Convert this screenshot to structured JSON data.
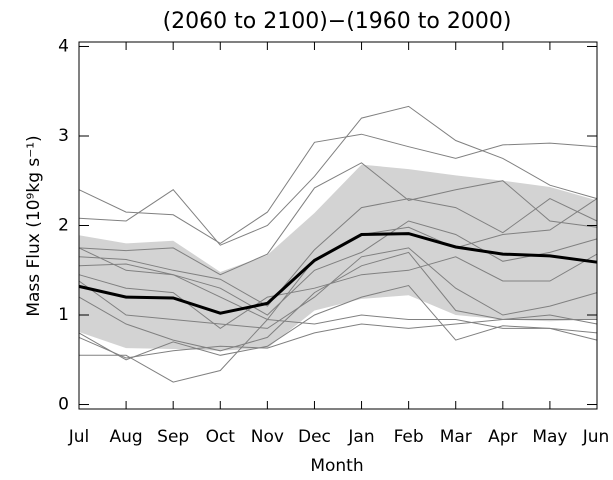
{
  "chart_data": {
    "type": "line",
    "title": "(2060 to 2100)−(1960 to 2000)",
    "x_label": "Month",
    "y_label": "Mass Flux (10⁹kg s⁻¹)",
    "categories": [
      "Jul",
      "Aug",
      "Sep",
      "Oct",
      "Nov",
      "Dec",
      "Jan",
      "Feb",
      "Mar",
      "Apr",
      "May",
      "Jun"
    ],
    "ylim": [
      -0.05,
      4.05
    ],
    "yticks": [
      0,
      1,
      2,
      3,
      4
    ],
    "band_color": "#d3d3d3",
    "band_upper": [
      1.89,
      1.8,
      1.83,
      1.48,
      1.67,
      2.14,
      2.68,
      2.63,
      2.56,
      2.5,
      2.43,
      2.28
    ],
    "band_lower": [
      0.81,
      0.63,
      0.62,
      0.6,
      0.63,
      1.05,
      1.18,
      1.22,
      1.0,
      0.95,
      0.93,
      0.95
    ],
    "mean_color": "#000000",
    "mean": [
      1.32,
      1.2,
      1.19,
      1.02,
      1.13,
      1.61,
      1.9,
      1.91,
      1.76,
      1.68,
      1.66,
      1.59
    ],
    "model_color": "#808080",
    "models": [
      [
        2.4,
        2.15,
        2.12,
        1.8,
        2.15,
        2.93,
        3.02,
        2.88,
        2.75,
        2.9,
        2.92,
        2.88
      ],
      [
        2.08,
        2.05,
        2.4,
        1.78,
        2.0,
        2.55,
        3.2,
        3.33,
        2.95,
        2.75,
        2.45,
        2.3
      ],
      [
        1.75,
        1.72,
        1.75,
        1.45,
        1.68,
        2.42,
        2.7,
        2.28,
        2.4,
        2.5,
        2.05,
        1.98
      ],
      [
        1.65,
        1.62,
        1.5,
        1.4,
        1.1,
        1.73,
        2.2,
        2.3,
        2.2,
        1.92,
        2.3,
        2.05
      ],
      [
        1.55,
        1.57,
        1.45,
        1.3,
        1.0,
        1.5,
        1.7,
        2.05,
        1.9,
        1.6,
        1.7,
        1.85
      ],
      [
        1.45,
        1.3,
        1.25,
        0.85,
        1.2,
        1.3,
        1.45,
        1.5,
        1.65,
        1.38,
        1.38,
        1.68
      ],
      [
        1.38,
        1.0,
        0.95,
        0.9,
        0.85,
        1.2,
        1.65,
        1.75,
        1.3,
        1.0,
        1.1,
        1.25
      ],
      [
        1.2,
        0.9,
        0.72,
        0.6,
        0.75,
        1.25,
        1.55,
        1.7,
        1.05,
        0.95,
        0.95,
        0.95
      ],
      [
        0.8,
        0.5,
        0.7,
        0.55,
        0.65,
        1.0,
        1.2,
        1.33,
        0.72,
        0.88,
        0.85,
        0.72
      ],
      [
        0.55,
        0.55,
        0.25,
        0.38,
        0.95,
        0.9,
        1.0,
        0.95,
        0.95,
        0.85,
        0.85,
        0.8
      ],
      [
        0.75,
        0.52,
        0.6,
        0.65,
        0.63,
        0.8,
        0.9,
        0.85,
        0.9,
        0.95,
        1.0,
        0.9
      ],
      [
        1.75,
        1.5,
        1.45,
        1.2,
        0.95,
        1.62,
        1.9,
        1.98,
        1.75,
        1.9,
        1.95,
        2.3
      ]
    ]
  }
}
